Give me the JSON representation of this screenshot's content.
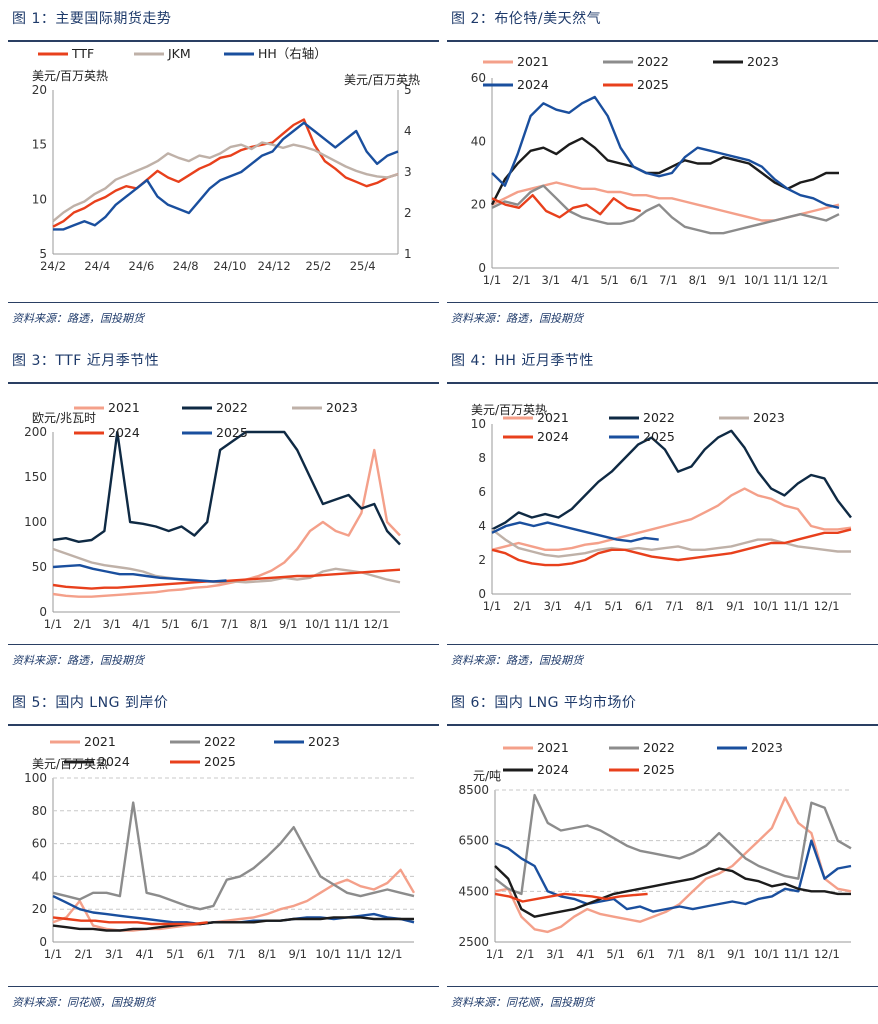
{
  "panels": [
    {
      "title": "图 1：主要国际期货走势",
      "source": "资料来源：路透，国投期货"
    },
    {
      "title": "图 2：布伦特/美天然气",
      "source": "资料来源：路透，国投期货"
    },
    {
      "title": "图 3：TTF 近月季节性",
      "source": "资料来源：路透，国投期货"
    },
    {
      "title": "图 4：HH 近月季节性",
      "source": "资料来源：路透，国投期货"
    },
    {
      "title": "图 5：国内 LNG 到岸价",
      "source": "资料来源：同花顺，国投期货"
    },
    {
      "title": "图 6：国内 LNG 平均市场价",
      "source": "资料来源：同花顺，国投期货"
    }
  ],
  "chart_data": [
    {
      "type": "line",
      "ylabel": "美元/百万英热",
      "y2label": "美元/百万英热",
      "ylim": [
        5,
        20
      ],
      "y_ticks": [
        5,
        10,
        15,
        20
      ],
      "y2lim": [
        1,
        5
      ],
      "y2_ticks": [
        1,
        2,
        3,
        4,
        5
      ],
      "x_ticks": [
        "24/2",
        "24/4",
        "24/6",
        "24/8",
        "24/10",
        "24/12",
        "25/2",
        "25/4"
      ],
      "legend": [
        "TTF",
        "JKM",
        "HH（右轴）"
      ],
      "legend_position": "top",
      "series": [
        {
          "name": "TTF",
          "color": "#e8401c",
          "axis": "left",
          "values": [
            7.5,
            8.0,
            8.8,
            9.2,
            9.8,
            10.2,
            10.8,
            11.2,
            11.0,
            11.8,
            12.6,
            12.0,
            11.6,
            12.2,
            12.8,
            13.2,
            13.8,
            14.0,
            14.5,
            14.8,
            15.0,
            15.2,
            16.0,
            16.8,
            17.3,
            15.0,
            13.5,
            12.8,
            12.0,
            11.6,
            11.2,
            11.5,
            12.0,
            12.3
          ]
        },
        {
          "name": "JKM",
          "color": "#bfb1a8",
          "axis": "left",
          "values": [
            8.0,
            8.8,
            9.4,
            9.8,
            10.5,
            11.0,
            11.8,
            12.2,
            12.6,
            13.0,
            13.5,
            14.2,
            13.8,
            13.5,
            14.0,
            13.8,
            14.2,
            14.8,
            15.0,
            14.6,
            15.2,
            15.0,
            14.7,
            15.0,
            14.8,
            14.5,
            14.0,
            13.5,
            13.0,
            12.6,
            12.3,
            12.1,
            12.0,
            12.3
          ]
        },
        {
          "name": "HH（右轴）",
          "color": "#1a4f9e",
          "axis": "right",
          "values": [
            1.6,
            1.6,
            1.7,
            1.8,
            1.7,
            1.9,
            2.2,
            2.4,
            2.6,
            2.8,
            2.4,
            2.2,
            2.1,
            2.0,
            2.3,
            2.6,
            2.8,
            2.9,
            3.0,
            3.2,
            3.4,
            3.5,
            3.8,
            4.0,
            4.2,
            4.0,
            3.8,
            3.6,
            3.8,
            4.0,
            3.5,
            3.2,
            3.4,
            3.5
          ]
        }
      ]
    },
    {
      "type": "line",
      "ylim": [
        0,
        60
      ],
      "y_ticks": [
        0,
        20,
        40,
        60
      ],
      "x_ticks": [
        "1/1",
        "2/1",
        "3/1",
        "4/1",
        "5/1",
        "6/1",
        "7/1",
        "8/1",
        "9/1",
        "10/1",
        "11/1",
        "12/1"
      ],
      "legend": [
        "2021",
        "2022",
        "2023",
        "2024",
        "2025"
      ],
      "legend_position": "top",
      "series": [
        {
          "name": "2021",
          "color": "#f4a08a",
          "values": [
            20,
            22,
            24,
            25,
            26,
            27,
            26,
            25,
            25,
            24,
            24,
            23,
            23,
            22,
            22,
            21,
            20,
            19,
            18,
            17,
            16,
            15,
            15,
            16,
            17,
            18,
            19,
            20
          ]
        },
        {
          "name": "2022",
          "color": "#8c8c8c",
          "values": [
            19,
            21,
            20,
            24,
            26,
            22,
            18,
            16,
            15,
            14,
            14,
            15,
            18,
            20,
            16,
            13,
            12,
            11,
            11,
            12,
            13,
            14,
            15,
            16,
            17,
            16,
            15,
            17
          ]
        },
        {
          "name": "2023",
          "color": "#1c1c1c",
          "values": [
            20,
            28,
            33,
            37,
            38,
            36,
            39,
            41,
            38,
            34,
            33,
            32,
            30,
            30,
            32,
            34,
            33,
            33,
            35,
            34,
            33,
            30,
            27,
            25,
            27,
            28,
            30,
            30
          ]
        },
        {
          "name": "2024",
          "color": "#1a4f9e",
          "values": [
            30,
            26,
            36,
            48,
            52,
            50,
            49,
            52,
            54,
            48,
            38,
            32,
            30,
            29,
            30,
            35,
            38,
            37,
            36,
            35,
            34,
            32,
            28,
            25,
            23,
            22,
            20,
            19
          ]
        },
        {
          "name": "2025",
          "color": "#e8401c",
          "values": [
            22,
            20,
            19,
            23,
            18,
            16,
            19,
            20,
            17,
            22,
            19,
            18
          ]
        }
      ]
    },
    {
      "type": "line",
      "ylabel": "欧元/兆瓦时",
      "ylim": [
        0,
        200
      ],
      "y_ticks": [
        0,
        50,
        100,
        150,
        200
      ],
      "x_ticks": [
        "1/1",
        "2/1",
        "3/1",
        "4/1",
        "5/1",
        "6/1",
        "7/1",
        "8/1",
        "9/1",
        "10/1",
        "11/1",
        "12/1"
      ],
      "legend": [
        "2021",
        "2022",
        "2023",
        "2024",
        "2025"
      ],
      "legend_position": "top",
      "series": [
        {
          "name": "2021",
          "color": "#f4a08a",
          "values": [
            20,
            18,
            17,
            17,
            18,
            19,
            20,
            21,
            22,
            24,
            25,
            27,
            28,
            30,
            33,
            36,
            40,
            46,
            55,
            70,
            90,
            100,
            90,
            85,
            110,
            180,
            100,
            85
          ]
        },
        {
          "name": "2022",
          "color": "#0f2a44",
          "values": [
            80,
            82,
            78,
            80,
            90,
            210,
            100,
            98,
            95,
            90,
            95,
            85,
            100,
            180,
            190,
            200,
            200,
            230,
            200,
            180,
            150,
            120,
            125,
            130,
            115,
            120,
            90,
            75
          ]
        },
        {
          "name": "2023",
          "color": "#bfb1a8",
          "values": [
            70,
            65,
            60,
            55,
            52,
            50,
            48,
            45,
            40,
            38,
            36,
            35,
            34,
            33,
            34,
            33,
            34,
            35,
            38,
            36,
            38,
            45,
            48,
            46,
            44,
            40,
            36,
            33
          ]
        },
        {
          "name": "2024",
          "color": "#e8401c",
          "values": [
            30,
            28,
            27,
            26,
            27,
            27,
            28,
            29,
            30,
            31,
            32,
            33,
            34,
            34,
            35,
            36,
            37,
            38,
            39,
            40,
            40,
            41,
            42,
            43,
            44,
            45,
            46,
            47
          ]
        },
        {
          "name": "2025",
          "color": "#1a4f9e",
          "values": [
            50,
            51,
            52,
            48,
            45,
            42,
            42,
            40,
            38,
            37,
            36,
            35,
            34,
            35
          ]
        }
      ]
    },
    {
      "type": "line",
      "ylabel": "美元/百万英热",
      "ylim": [
        0,
        10
      ],
      "y_ticks": [
        0,
        2,
        4,
        6,
        8,
        10
      ],
      "x_ticks": [
        "1/1",
        "2/1",
        "3/1",
        "4/1",
        "5/1",
        "6/1",
        "7/1",
        "8/1",
        "9/1",
        "10/1",
        "11/1",
        "12/1"
      ],
      "legend": [
        "2021",
        "2022",
        "2023",
        "2024",
        "2025"
      ],
      "legend_position": "top",
      "series": [
        {
          "name": "2021",
          "color": "#f4a08a",
          "values": [
            2.6,
            2.8,
            3.0,
            2.8,
            2.6,
            2.6,
            2.7,
            2.9,
            3.0,
            3.2,
            3.4,
            3.6,
            3.8,
            4.0,
            4.2,
            4.4,
            4.8,
            5.2,
            5.8,
            6.2,
            5.8,
            5.6,
            5.2,
            5.0,
            4.0,
            3.8,
            3.8,
            3.9
          ]
        },
        {
          "name": "2022",
          "color": "#0f2a44",
          "values": [
            3.8,
            4.2,
            4.8,
            4.5,
            4.7,
            4.5,
            5.0,
            5.8,
            6.6,
            7.2,
            8.0,
            8.8,
            9.2,
            8.5,
            7.2,
            7.5,
            8.5,
            9.2,
            9.6,
            8.6,
            7.2,
            6.2,
            5.8,
            6.5,
            7.0,
            6.8,
            5.5,
            4.5
          ]
        },
        {
          "name": "2023",
          "color": "#bfb1a8",
          "values": [
            3.8,
            3.2,
            2.7,
            2.5,
            2.3,
            2.2,
            2.3,
            2.4,
            2.6,
            2.7,
            2.6,
            2.7,
            2.6,
            2.7,
            2.8,
            2.6,
            2.6,
            2.7,
            2.8,
            3.0,
            3.2,
            3.2,
            3.0,
            2.8,
            2.7,
            2.6,
            2.5,
            2.5
          ]
        },
        {
          "name": "2024",
          "color": "#e8401c",
          "values": [
            2.6,
            2.4,
            2.0,
            1.8,
            1.7,
            1.7,
            1.8,
            2.0,
            2.4,
            2.6,
            2.6,
            2.4,
            2.2,
            2.1,
            2.0,
            2.1,
            2.2,
            2.3,
            2.4,
            2.6,
            2.8,
            3.0,
            3.0,
            3.2,
            3.4,
            3.6,
            3.6,
            3.8
          ]
        },
        {
          "name": "2025",
          "color": "#1a4f9e",
          "values": [
            3.6,
            4.0,
            4.2,
            4.0,
            4.2,
            4.0,
            3.8,
            3.6,
            3.4,
            3.2,
            3.1,
            3.3,
            3.2
          ]
        }
      ]
    },
    {
      "type": "line",
      "ylabel": "美元/百万英热",
      "ylim": [
        0,
        100
      ],
      "y_ticks": [
        0,
        20,
        40,
        60,
        80,
        100
      ],
      "grid": true,
      "x_ticks": [
        "1/1",
        "2/1",
        "3/1",
        "4/1",
        "5/1",
        "6/1",
        "7/1",
        "8/1",
        "9/1",
        "10/1",
        "11/1",
        "12/1"
      ],
      "legend": [
        "2021",
        "2022",
        "2023",
        "2024",
        "2025"
      ],
      "legend_position": "top",
      "series": [
        {
          "name": "2021",
          "color": "#f4a08a",
          "values": [
            12,
            15,
            25,
            10,
            8,
            7,
            7,
            8,
            8,
            9,
            10,
            11,
            12,
            13,
            14,
            15,
            17,
            20,
            22,
            25,
            30,
            35,
            38,
            34,
            32,
            36,
            44,
            30
          ]
        },
        {
          "name": "2022",
          "color": "#8c8c8c",
          "values": [
            30,
            28,
            26,
            30,
            30,
            28,
            85,
            30,
            28,
            25,
            22,
            20,
            22,
            38,
            40,
            45,
            52,
            60,
            70,
            55,
            40,
            35,
            30,
            28,
            30,
            32,
            30,
            28
          ]
        },
        {
          "name": "2023",
          "color": "#1a4f9e",
          "values": [
            28,
            24,
            20,
            18,
            17,
            16,
            15,
            14,
            13,
            12,
            12,
            11,
            12,
            12,
            12,
            13,
            13,
            13,
            14,
            15,
            15,
            14,
            15,
            16,
            17,
            15,
            14,
            12
          ]
        },
        {
          "name": "2024",
          "color": "#1c1c1c",
          "values": [
            10,
            9,
            8,
            8,
            7,
            7,
            8,
            8,
            9,
            10,
            11,
            11,
            12,
            12,
            12,
            12,
            13,
            13,
            14,
            14,
            14,
            15,
            15,
            15,
            14,
            14,
            14,
            14
          ]
        },
        {
          "name": "2025",
          "color": "#e8401c",
          "values": [
            15,
            14,
            13,
            13,
            12,
            12,
            12,
            11,
            11,
            11,
            11,
            12
          ]
        }
      ]
    },
    {
      "type": "line",
      "ylabel": "元/吨",
      "ylim": [
        2500,
        8500
      ],
      "y_ticks": [
        2500,
        4500,
        6500,
        8500
      ],
      "grid": true,
      "x_ticks": [
        "1/1",
        "2/1",
        "3/1",
        "4/1",
        "5/1",
        "6/1",
        "7/1",
        "8/1",
        "9/1",
        "10/1",
        "11/1",
        "12/1"
      ],
      "legend": [
        "2021",
        "2022",
        "2023",
        "2024",
        "2025"
      ],
      "legend_position": "top",
      "series": [
        {
          "name": "2021",
          "color": "#f4a08a",
          "values": [
            4500,
            4600,
            3500,
            3000,
            2900,
            3100,
            3500,
            3800,
            3600,
            3500,
            3400,
            3300,
            3500,
            3700,
            4000,
            4500,
            5000,
            5200,
            5500,
            6000,
            6500,
            7000,
            8200,
            7200,
            6800,
            5000,
            4600,
            4500
          ]
        },
        {
          "name": "2022",
          "color": "#8c8c8c",
          "values": [
            5000,
            4600,
            4400,
            8300,
            7200,
            6900,
            7000,
            7100,
            6900,
            6600,
            6300,
            6100,
            6000,
            5900,
            5800,
            6000,
            6300,
            6800,
            6300,
            5800,
            5500,
            5300,
            5100,
            5000,
            8000,
            7800,
            6500,
            6200
          ]
        },
        {
          "name": "2023",
          "color": "#1a4f9e",
          "values": [
            6400,
            6200,
            5800,
            5500,
            4500,
            4300,
            4200,
            4000,
            4100,
            4200,
            3800,
            3900,
            3700,
            3800,
            3900,
            3800,
            3900,
            4000,
            4100,
            4000,
            4200,
            4300,
            4600,
            4500,
            6500,
            5000,
            5400,
            5500
          ]
        },
        {
          "name": "2024",
          "color": "#1c1c1c",
          "values": [
            5500,
            5000,
            3800,
            3500,
            3600,
            3700,
            3800,
            4000,
            4200,
            4400,
            4500,
            4600,
            4700,
            4800,
            4900,
            5000,
            5200,
            5400,
            5300,
            5000,
            4900,
            4700,
            4800,
            4600,
            4500,
            4500,
            4400,
            4400
          ]
        },
        {
          "name": "2025",
          "color": "#e8401c",
          "values": [
            4400,
            4300,
            4100,
            4200,
            4300,
            4400,
            4350,
            4300,
            4200,
            4300,
            4350,
            4400
          ]
        }
      ]
    }
  ]
}
